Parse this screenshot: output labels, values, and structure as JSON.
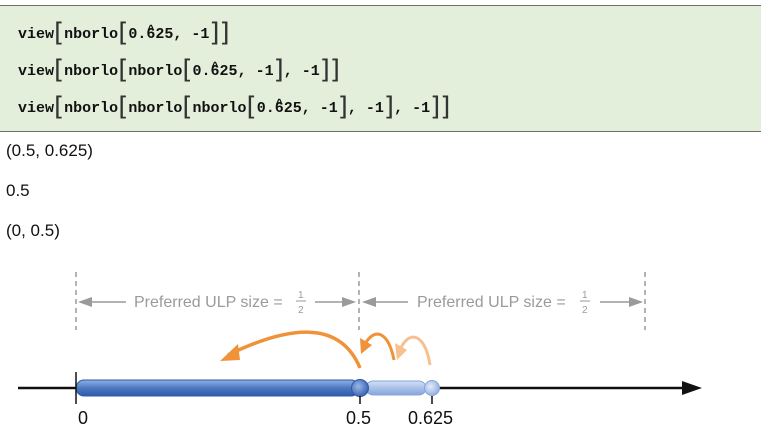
{
  "code": {
    "line1": {
      "fn": "view",
      "inner": "nborlo",
      "arg": "0.625",
      "arg_hat_char": "6",
      "arg_rest": "25",
      "arg_lead": "0.",
      "suffix": ", -1"
    },
    "line2": {
      "fn": "view",
      "inner": "nborlo",
      "arg_lead": "0.",
      "arg_hat_char": "6",
      "arg_rest": "25",
      "suffix": ", -1"
    },
    "line3": {
      "fn": "view",
      "inner": "nborlo",
      "arg_lead": "0.",
      "arg_hat_char": "6",
      "arg_rest": "25",
      "suffix": ", -1"
    }
  },
  "outputs": {
    "out1": "(0.5, 0.625)",
    "out2": "0.5",
    "out3": "(0, 0.5)"
  },
  "diagram": {
    "ulp_left_label": "Preferred ULP size = ",
    "ulp_right_label": "Preferred ULP size = ",
    "frac_num": "1",
    "frac_den": "2",
    "tick_labels": [
      "0",
      "0.5",
      "0.625"
    ],
    "colors": {
      "interval_fill": "#5b84c9",
      "interval_light": "#a9c1e8",
      "arrow_orange": "#f0923a",
      "arrow_orange_light": "#f6c08f",
      "axis": "#111111",
      "guide": "#9a9a9a"
    }
  }
}
